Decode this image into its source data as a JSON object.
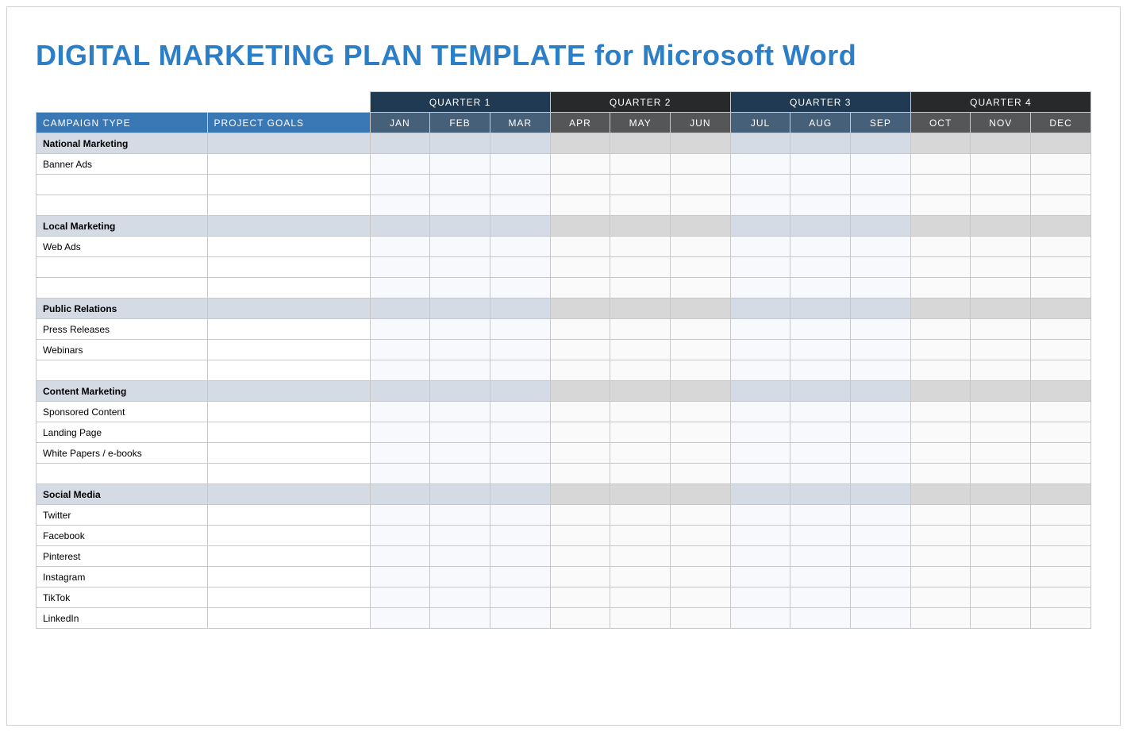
{
  "title": "DIGITAL MARKETING PLAN TEMPLATE for Microsoft Word",
  "title_color": "#2c7ec6",
  "columns": {
    "campaign": "CAMPAIGN TYPE",
    "goals": "PROJECT GOALS"
  },
  "quarters": [
    {
      "label": "QUARTER 1",
      "months": [
        "JAN",
        "FEB",
        "MAR"
      ],
      "header_bg": "#1f3a52",
      "month_bg": "#47607a",
      "section_bg": "#d4dbe5",
      "row_bg": "#f7f9fc"
    },
    {
      "label": "QUARTER 2",
      "months": [
        "APR",
        "MAY",
        "JUN"
      ],
      "header_bg": "#28292b",
      "month_bg": "#555658",
      "section_bg": "#d7d7d7",
      "row_bg": "#fafafa"
    },
    {
      "label": "QUARTER 3",
      "months": [
        "JUL",
        "AUG",
        "SEP"
      ],
      "header_bg": "#1f3a52",
      "month_bg": "#47607a",
      "section_bg": "#d4dbe5",
      "row_bg": "#f7f9fc"
    },
    {
      "label": "QUARTER 4",
      "months": [
        "OCT",
        "NOV",
        "DEC"
      ],
      "header_bg": "#28292b",
      "month_bg": "#555658",
      "section_bg": "#d7d7d7",
      "row_bg": "#fafafa"
    }
  ],
  "column_header_bg": "#3a77b5",
  "border_color": "#c8c8c8",
  "sections": [
    {
      "name": "National Marketing",
      "rows": [
        "Banner Ads",
        "",
        ""
      ]
    },
    {
      "name": "Local Marketing",
      "rows": [
        "Web Ads",
        "",
        ""
      ]
    },
    {
      "name": "Public Relations",
      "rows": [
        "Press Releases",
        "Webinars",
        ""
      ]
    },
    {
      "name": "Content Marketing",
      "rows": [
        "Sponsored Content",
        "Landing Page",
        "White Papers / e-books",
        ""
      ]
    },
    {
      "name": "Social Media",
      "rows": [
        "Twitter",
        "Facebook",
        "Pinterest",
        "Instagram",
        "TikTok",
        "LinkedIn"
      ]
    }
  ]
}
